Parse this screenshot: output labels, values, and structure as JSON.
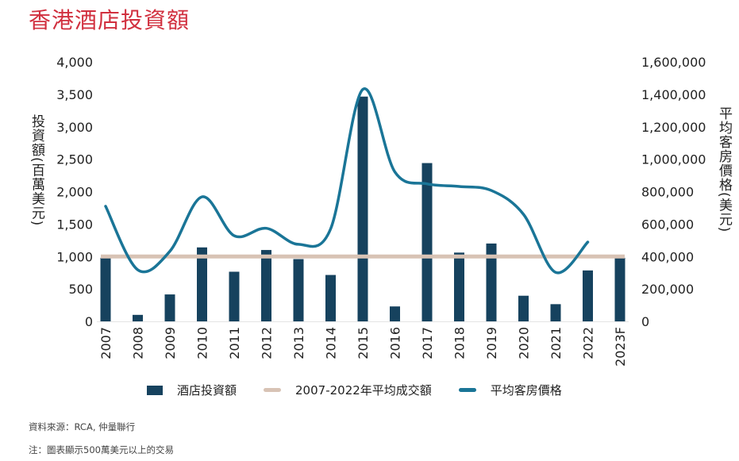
{
  "title": "香港酒店投資額",
  "chart_data": {
    "type": "bar+line",
    "categories": [
      "2007",
      "2008",
      "2009",
      "2010",
      "2011",
      "2012",
      "2013",
      "2014",
      "2015",
      "2016",
      "2017",
      "2018",
      "2019",
      "2020",
      "2021",
      "2022",
      "2023F"
    ],
    "series": [
      {
        "name": "酒店投資額",
        "type": "bar",
        "axis": "left",
        "color": "#16425e",
        "values": [
          980,
          100,
          415,
          1140,
          765,
          1100,
          960,
          715,
          3465,
          230,
          2440,
          1060,
          1200,
          395,
          265,
          785,
          980
        ]
      },
      {
        "name": "2007-2022年平均成交額",
        "type": "line",
        "axis": "left",
        "color": "#d8c3b5",
        "values": [
          1000,
          1000,
          1000,
          1000,
          1000,
          1000,
          1000,
          1000,
          1000,
          1000,
          1000,
          1000,
          1000,
          1000,
          1000,
          1000,
          1000
        ]
      },
      {
        "name": "平均客房價格",
        "type": "line",
        "smooth": true,
        "axis": "right",
        "color": "#1a7597",
        "values": [
          710000,
          318000,
          432000,
          768000,
          528000,
          574000,
          475000,
          570000,
          1430000,
          921000,
          848000,
          832000,
          807000,
          660000,
          302000,
          489000,
          null
        ]
      }
    ],
    "ylabel_left": "投資額(百萬美元)",
    "ylabel_right": "平均客房價格(美元)",
    "ylim_left": [
      0,
      4000
    ],
    "ylim_right": [
      0,
      1600000
    ],
    "yticks_left": [
      "0",
      "500",
      "1,000",
      "1,500",
      "2,000",
      "2,500",
      "3,000",
      "3,500",
      "4,000"
    ],
    "yticks_right": [
      "0",
      "200,000",
      "400,000",
      "600,000",
      "800,000",
      "1,000,000",
      "1,200,000",
      "1,400,000",
      "1,600,000"
    ],
    "grid": false,
    "legend": "bottom"
  },
  "footer": {
    "source": "資料來源：RCA, 仲量聯行",
    "note": "注：圖表顯示500萬美元以上的交易"
  }
}
